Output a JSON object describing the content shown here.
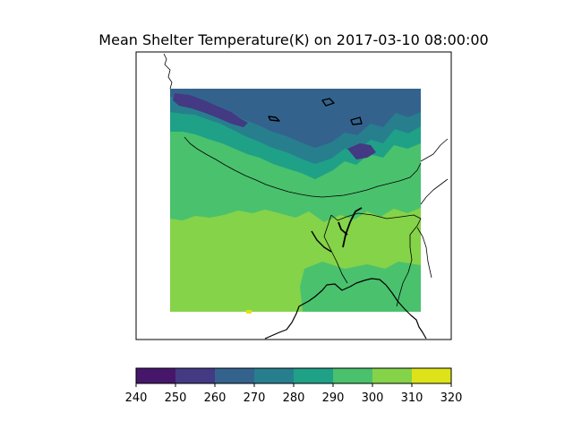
{
  "title": "Mean Shelter Temperature(K) on 2017-03-10 08:00:00",
  "colorbar": {
    "ticks": [
      "240",
      "250",
      "260",
      "270",
      "280",
      "290",
      "300",
      "310",
      "320"
    ],
    "bins": [
      {
        "range": [
          240,
          250
        ],
        "color": "#46166b"
      },
      {
        "range": [
          250,
          260
        ],
        "color": "#443983"
      },
      {
        "range": [
          260,
          270
        ],
        "color": "#33638d"
      },
      {
        "range": [
          270,
          280
        ],
        "color": "#277f8e"
      },
      {
        "range": [
          280,
          290
        ],
        "color": "#1fa187"
      },
      {
        "range": [
          290,
          300
        ],
        "color": "#4ac16d"
      },
      {
        "range": [
          300,
          310
        ],
        "color": "#85d349"
      },
      {
        "range": [
          310,
          320
        ],
        "color": "#dde318"
      }
    ]
  },
  "colors": {
    "warm_plain": "#85d349",
    "mid_band": "#4ac16d",
    "foothill": "#1fa187",
    "slope": "#277f8e",
    "plateau": "#33638d",
    "high_peaks": "#443983"
  }
}
